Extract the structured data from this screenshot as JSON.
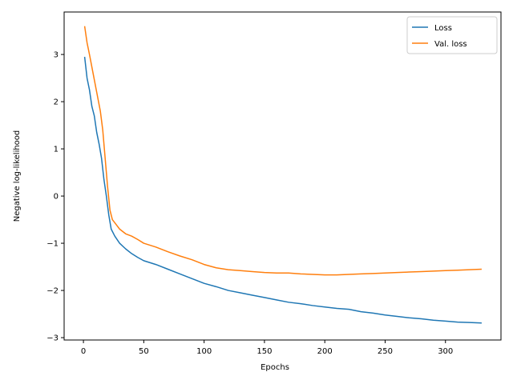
{
  "chart_data": {
    "type": "line",
    "title": "",
    "xlabel": "Epochs",
    "ylabel": "Negative log-likelihood",
    "xlim": [
      -16,
      346
    ],
    "ylim": [
      -3.05,
      3.9
    ],
    "xticks": [
      0,
      50,
      100,
      150,
      200,
      250,
      300
    ],
    "yticks": [
      -3,
      -2,
      -1,
      0,
      1,
      2,
      3
    ],
    "grid": false,
    "legend_position": "top-right",
    "series": [
      {
        "name": "Loss",
        "color": "#1f77b4",
        "points": [
          [
            1,
            2.95
          ],
          [
            3,
            2.5
          ],
          [
            5,
            2.25
          ],
          [
            7,
            1.9
          ],
          [
            9,
            1.7
          ],
          [
            11,
            1.35
          ],
          [
            13,
            1.1
          ],
          [
            15,
            0.8
          ],
          [
            17,
            0.35
          ],
          [
            19,
            0.0
          ],
          [
            21,
            -0.4
          ],
          [
            23,
            -0.7
          ],
          [
            26,
            -0.85
          ],
          [
            30,
            -1.0
          ],
          [
            35,
            -1.12
          ],
          [
            40,
            -1.22
          ],
          [
            45,
            -1.3
          ],
          [
            50,
            -1.37
          ],
          [
            60,
            -1.45
          ],
          [
            70,
            -1.55
          ],
          [
            80,
            -1.65
          ],
          [
            90,
            -1.75
          ],
          [
            100,
            -1.85
          ],
          [
            110,
            -1.92
          ],
          [
            120,
            -2.0
          ],
          [
            130,
            -2.05
          ],
          [
            140,
            -2.1
          ],
          [
            150,
            -2.15
          ],
          [
            160,
            -2.2
          ],
          [
            170,
            -2.25
          ],
          [
            180,
            -2.28
          ],
          [
            190,
            -2.32
          ],
          [
            200,
            -2.35
          ],
          [
            210,
            -2.38
          ],
          [
            220,
            -2.4
          ],
          [
            230,
            -2.45
          ],
          [
            240,
            -2.48
          ],
          [
            250,
            -2.52
          ],
          [
            260,
            -2.55
          ],
          [
            270,
            -2.58
          ],
          [
            280,
            -2.6
          ],
          [
            290,
            -2.63
          ],
          [
            300,
            -2.65
          ],
          [
            310,
            -2.67
          ],
          [
            320,
            -2.68
          ],
          [
            330,
            -2.69
          ]
        ]
      },
      {
        "name": "Val. loss",
        "color": "#ff7f0e",
        "points": [
          [
            1,
            3.6
          ],
          [
            3,
            3.25
          ],
          [
            5,
            3.0
          ],
          [
            8,
            2.6
          ],
          [
            11,
            2.2
          ],
          [
            14,
            1.8
          ],
          [
            16,
            1.4
          ],
          [
            18,
            0.8
          ],
          [
            20,
            0.2
          ],
          [
            22,
            -0.3
          ],
          [
            24,
            -0.5
          ],
          [
            27,
            -0.6
          ],
          [
            30,
            -0.7
          ],
          [
            35,
            -0.8
          ],
          [
            40,
            -0.85
          ],
          [
            45,
            -0.92
          ],
          [
            50,
            -1.0
          ],
          [
            60,
            -1.08
          ],
          [
            70,
            -1.18
          ],
          [
            80,
            -1.27
          ],
          [
            90,
            -1.35
          ],
          [
            100,
            -1.45
          ],
          [
            110,
            -1.52
          ],
          [
            120,
            -1.56
          ],
          [
            130,
            -1.58
          ],
          [
            140,
            -1.6
          ],
          [
            150,
            -1.62
          ],
          [
            160,
            -1.63
          ],
          [
            170,
            -1.63
          ],
          [
            180,
            -1.65
          ],
          [
            190,
            -1.66
          ],
          [
            200,
            -1.67
          ],
          [
            210,
            -1.67
          ],
          [
            220,
            -1.66
          ],
          [
            230,
            -1.65
          ],
          [
            240,
            -1.64
          ],
          [
            250,
            -1.63
          ],
          [
            260,
            -1.62
          ],
          [
            270,
            -1.61
          ],
          [
            280,
            -1.6
          ],
          [
            290,
            -1.59
          ],
          [
            300,
            -1.58
          ],
          [
            310,
            -1.57
          ],
          [
            320,
            -1.56
          ],
          [
            330,
            -1.55
          ]
        ]
      }
    ]
  }
}
